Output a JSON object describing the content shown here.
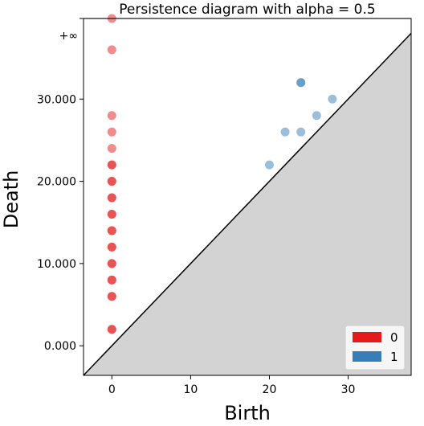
{
  "chart_data": {
    "type": "scatter",
    "title": "Persistence diagram with alpha = 0.5",
    "xlabel": "Birth",
    "ylabel": "Death",
    "xlim": [
      -3.6,
      38
    ],
    "ylim": [
      -3.6,
      39.8
    ],
    "infinity_value": 39.8,
    "infinity_label": "+∞",
    "x_ticks": [
      0,
      10,
      20,
      30
    ],
    "x_tick_labels": [
      "0",
      "10",
      "20",
      "30"
    ],
    "y_ticks": [
      0,
      10,
      20,
      30
    ],
    "y_tick_labels": [
      "0.000",
      "10.000",
      "20.000",
      "30.000"
    ],
    "alpha": 0.5,
    "diagonal_fill": "#d3d3d3",
    "legend_position": "lower-right",
    "series": [
      {
        "name": "0",
        "color": "#e41a1c",
        "points": [
          {
            "x": 0,
            "y": 2
          },
          {
            "x": 0,
            "y": 2
          },
          {
            "x": 0,
            "y": 6
          },
          {
            "x": 0,
            "y": 6
          },
          {
            "x": 0,
            "y": 8
          },
          {
            "x": 0,
            "y": 8
          },
          {
            "x": 0,
            "y": 10
          },
          {
            "x": 0,
            "y": 10
          },
          {
            "x": 0,
            "y": 12
          },
          {
            "x": 0,
            "y": 12
          },
          {
            "x": 0,
            "y": 14
          },
          {
            "x": 0,
            "y": 14
          },
          {
            "x": 0,
            "y": 16
          },
          {
            "x": 0,
            "y": 16
          },
          {
            "x": 0,
            "y": 18
          },
          {
            "x": 0,
            "y": 18
          },
          {
            "x": 0,
            "y": 20
          },
          {
            "x": 0,
            "y": 20
          },
          {
            "x": 0,
            "y": 22
          },
          {
            "x": 0,
            "y": 22
          },
          {
            "x": 0,
            "y": 24
          },
          {
            "x": 0,
            "y": 26
          },
          {
            "x": 0,
            "y": 28
          },
          {
            "x": 0,
            "y": 36
          },
          {
            "x": 0,
            "y": 39.8
          }
        ]
      },
      {
        "name": "1",
        "color": "#377eb8",
        "points": [
          {
            "x": 20,
            "y": 22
          },
          {
            "x": 22,
            "y": 26
          },
          {
            "x": 24,
            "y": 26
          },
          {
            "x": 24,
            "y": 32
          },
          {
            "x": 24,
            "y": 32
          },
          {
            "x": 26,
            "y": 28
          },
          {
            "x": 28,
            "y": 30
          }
        ]
      }
    ]
  }
}
